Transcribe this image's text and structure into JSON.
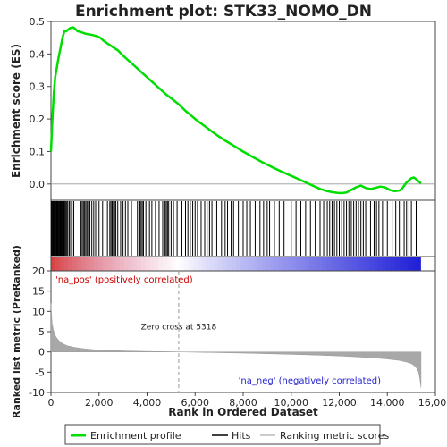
{
  "chart_data": {
    "type": "line",
    "title": "Enrichment plot: STK33_NOMO_DN",
    "top_panel": {
      "ylabel": "Enrichment score (ES)",
      "ylim": [
        -0.05,
        0.5
      ],
      "yticks": [
        "0.0",
        "0.1",
        "0.2",
        "0.3",
        "0.4",
        "0.5"
      ],
      "ytick_values": [
        0.0,
        0.1,
        0.2,
        0.3,
        0.4,
        0.5
      ],
      "series": [
        {
          "name": "Enrichment profile",
          "color": "#00dd00",
          "x": [
            0,
            60,
            120,
            180,
            250,
            320,
            400,
            480,
            560,
            640,
            720,
            800,
            900,
            1000,
            1100,
            1200,
            1300,
            1450,
            1600,
            1750,
            1900,
            2050,
            2200,
            2400,
            2600,
            2800,
            3000,
            3300,
            3600,
            3900,
            4200,
            4500,
            4800,
            5100,
            5318,
            5600,
            6000,
            6400,
            6800,
            7200,
            7600,
            8000,
            8400,
            8800,
            9200,
            9600,
            10000,
            10400,
            10800,
            11200,
            11500,
            11700,
            11900,
            12100,
            12300,
            12500,
            12700,
            12900,
            13100,
            13300,
            13500,
            13700,
            13900,
            14100,
            14300,
            14500,
            14600,
            14700,
            14800,
            14900,
            15000,
            15100,
            15200,
            15300,
            15400
          ],
          "y": [
            0.1,
            0.2,
            0.28,
            0.33,
            0.36,
            0.39,
            0.42,
            0.45,
            0.47,
            0.47,
            0.475,
            0.48,
            0.482,
            0.478,
            0.47,
            0.468,
            0.466,
            0.462,
            0.46,
            0.458,
            0.455,
            0.45,
            0.44,
            0.43,
            0.42,
            0.41,
            0.395,
            0.375,
            0.355,
            0.335,
            0.315,
            0.295,
            0.275,
            0.258,
            0.245,
            0.225,
            0.2,
            0.178,
            0.156,
            0.136,
            0.118,
            0.1,
            0.083,
            0.067,
            0.052,
            0.038,
            0.025,
            0.012,
            -0.002,
            -0.015,
            -0.022,
            -0.025,
            -0.027,
            -0.028,
            -0.026,
            -0.018,
            -0.01,
            -0.005,
            -0.012,
            -0.015,
            -0.012,
            -0.008,
            -0.01,
            -0.018,
            -0.022,
            -0.02,
            -0.015,
            -0.005,
            0.005,
            0.012,
            0.018,
            0.02,
            0.015,
            0.008,
            0.002
          ]
        }
      ]
    },
    "hits_panel": {
      "name": "Hits",
      "hit_ranks": [
        20,
        50,
        80,
        110,
        140,
        170,
        200,
        230,
        260,
        290,
        320,
        350,
        380,
        410,
        440,
        470,
        500,
        540,
        580,
        620,
        660,
        700,
        760,
        820,
        880,
        950,
        1250,
        1300,
        1350,
        1400,
        1450,
        1500,
        1560,
        1620,
        1700,
        1780,
        1860,
        2000,
        2150,
        2350,
        2450,
        2500,
        2550,
        2600,
        2650,
        2700,
        2780,
        2900,
        3000,
        3100,
        3200,
        3350,
        3600,
        3700,
        3750,
        3800,
        3850,
        3950,
        4100,
        4200,
        4350,
        4500,
        4650,
        4750,
        4800,
        4850,
        4900,
        5000,
        5100,
        5250,
        5450,
        5600,
        5700,
        5800,
        5900,
        6000,
        6100,
        6250,
        6400,
        6500,
        6600,
        6700,
        6900,
        7100,
        7250,
        7350,
        7500,
        7600,
        7800,
        8000,
        8150,
        8300,
        8500,
        8700,
        8850,
        9000,
        9100,
        9300,
        9500,
        9700,
        10000,
        10200,
        10400,
        10600,
        10800,
        11000,
        11200,
        11350,
        11500,
        11600,
        11700,
        11800,
        11900,
        12000,
        12100,
        12200,
        12300,
        12400,
        12500,
        12600,
        12700,
        12800,
        12900,
        13000,
        13100,
        13300,
        13450,
        13550,
        13650,
        13800,
        14000,
        14200,
        14350,
        14500,
        14700,
        14800,
        14900,
        15000,
        15200
      ]
    },
    "bottom_panel": {
      "name": "Ranking metric scores",
      "ylabel": "Ranked list metric (PreRanked)",
      "ylim": [
        -10,
        20
      ],
      "yticks": [
        "-10",
        "-5",
        "0",
        "5",
        "10",
        "15",
        "20"
      ],
      "ytick_values": [
        -10,
        -5,
        0,
        5,
        10,
        15,
        20
      ],
      "x": [
        0,
        20,
        50,
        100,
        150,
        200,
        300,
        400,
        500,
        700,
        1000,
        1500,
        2000,
        3000,
        4000,
        5000,
        5318,
        6000,
        7000,
        8000,
        9000,
        10000,
        11000,
        12000,
        13000,
        13500,
        14000,
        14500,
        14800,
        15000,
        15100,
        15200,
        15300,
        15350,
        15400
      ],
      "values": [
        12,
        10,
        7,
        5.5,
        4.5,
        3.8,
        3.0,
        2.4,
        2.0,
        1.5,
        1.1,
        0.7,
        0.45,
        0.25,
        0.12,
        0.04,
        0.0,
        -0.08,
        -0.18,
        -0.3,
        -0.45,
        -0.6,
        -0.78,
        -1.0,
        -1.3,
        -1.5,
        -1.75,
        -2.1,
        -2.5,
        -2.9,
        -3.3,
        -3.9,
        -5.0,
        -6.5,
        -8.8
      ],
      "zero_cross_label": "Zero cross at 5318",
      "pos_label": "'na_pos' (positively correlated)",
      "neg_label": "'na_neg' (negatively correlated)"
    },
    "xlabel": "Rank in Dataset",
    "xlabel_full": "Rank in Ordered Dataset",
    "xlim": [
      0,
      16000
    ],
    "xticks": [
      "0",
      "2,000",
      "4,000",
      "6,000",
      "8,000",
      "10,000",
      "12,000",
      "14,000",
      "16,000"
    ],
    "xtick_values": [
      0,
      2000,
      4000,
      6000,
      8000,
      10000,
      12000,
      14000,
      16000
    ],
    "zero_cross": 5318,
    "n_genes": 15400,
    "legend": {
      "placement": "bottom",
      "items": [
        "Enrichment profile",
        "Hits",
        "Ranking metric scores"
      ]
    },
    "colors": {
      "profile": "#00dd00",
      "hits": "#000000",
      "metric": "#a8a8a8",
      "pos_text": "#cc0000",
      "neg_text": "#2222cc"
    }
  }
}
